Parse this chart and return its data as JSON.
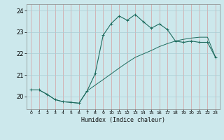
{
  "xlabel": "Humidex (Indice chaleur)",
  "bg_color": "#cce8ec",
  "grid_color": "#aacdd4",
  "line_color": "#1e6b5e",
  "xlim": [
    -0.5,
    23.5
  ],
  "ylim": [
    19.4,
    24.3
  ],
  "yticks": [
    20,
    21,
    22,
    23,
    24
  ],
  "xticks": [
    0,
    1,
    2,
    3,
    4,
    5,
    6,
    7,
    8,
    9,
    10,
    11,
    12,
    13,
    14,
    15,
    16,
    17,
    18,
    19,
    20,
    21,
    22,
    23
  ],
  "curve1_x": [
    0,
    1,
    2,
    3,
    4,
    5,
    6,
    7,
    8,
    9,
    10,
    11,
    12,
    13,
    14,
    15,
    16,
    17,
    18,
    19,
    20,
    21,
    22,
    23
  ],
  "curve1_y": [
    20.3,
    20.3,
    20.1,
    19.85,
    19.75,
    19.72,
    19.68,
    20.25,
    21.05,
    22.85,
    23.4,
    23.75,
    23.55,
    23.82,
    23.48,
    23.18,
    23.38,
    23.12,
    22.58,
    22.52,
    22.58,
    22.52,
    22.52,
    21.82
  ],
  "curve2_x": [
    0,
    1,
    2,
    3,
    4,
    5,
    6,
    7,
    8,
    9,
    10,
    11,
    12,
    13,
    14,
    15,
    16,
    17,
    18,
    19,
    20,
    21,
    22,
    23
  ],
  "curve2_y": [
    20.3,
    20.3,
    20.1,
    19.85,
    19.75,
    19.72,
    19.68,
    20.25,
    20.52,
    20.78,
    21.05,
    21.32,
    21.58,
    21.82,
    21.98,
    22.14,
    22.32,
    22.46,
    22.58,
    22.66,
    22.72,
    22.76,
    22.76,
    21.82
  ]
}
